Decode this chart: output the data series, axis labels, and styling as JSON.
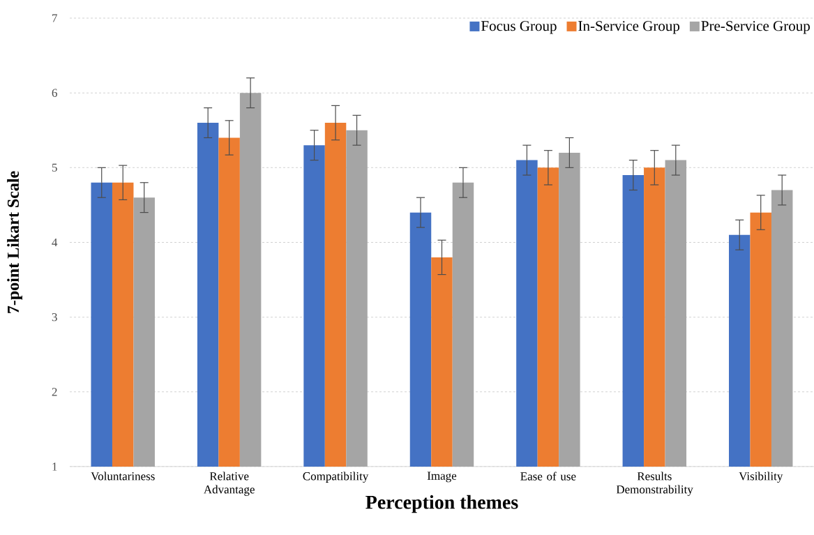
{
  "chart_data": {
    "type": "bar",
    "xlabel": "Perception themes",
    "ylabel": "7-point Likart Scale",
    "categories": [
      "Voluntariness",
      "Relative Advantage",
      "Compatibility",
      "Image",
      "Ease of use",
      "Results Demonstrability",
      "Visibility"
    ],
    "series": [
      {
        "name": "Focus Group",
        "color": "#4472c4",
        "values": [
          4.8,
          5.6,
          5.3,
          4.4,
          5.1,
          4.9,
          4.1
        ],
        "errors": [
          0.2,
          0.2,
          0.2,
          0.2,
          0.2,
          0.2,
          0.2
        ]
      },
      {
        "name": "In-Service Group",
        "color": "#ed7d31",
        "values": [
          4.8,
          5.4,
          5.6,
          3.8,
          5.0,
          5.0,
          4.4
        ],
        "errors": [
          0.23,
          0.23,
          0.23,
          0.23,
          0.23,
          0.23,
          0.23
        ]
      },
      {
        "name": "Pre-Service Group",
        "color": "#a5a5a5",
        "values": [
          4.6,
          6.0,
          5.5,
          4.8,
          5.2,
          5.1,
          4.7
        ],
        "errors": [
          0.2,
          0.2,
          0.2,
          0.2,
          0.2,
          0.2,
          0.2
        ]
      }
    ],
    "ylim": [
      1,
      7
    ],
    "yticks": [
      1,
      2,
      3,
      4,
      5,
      6,
      7
    ],
    "grid": "y",
    "legend": "top right"
  }
}
